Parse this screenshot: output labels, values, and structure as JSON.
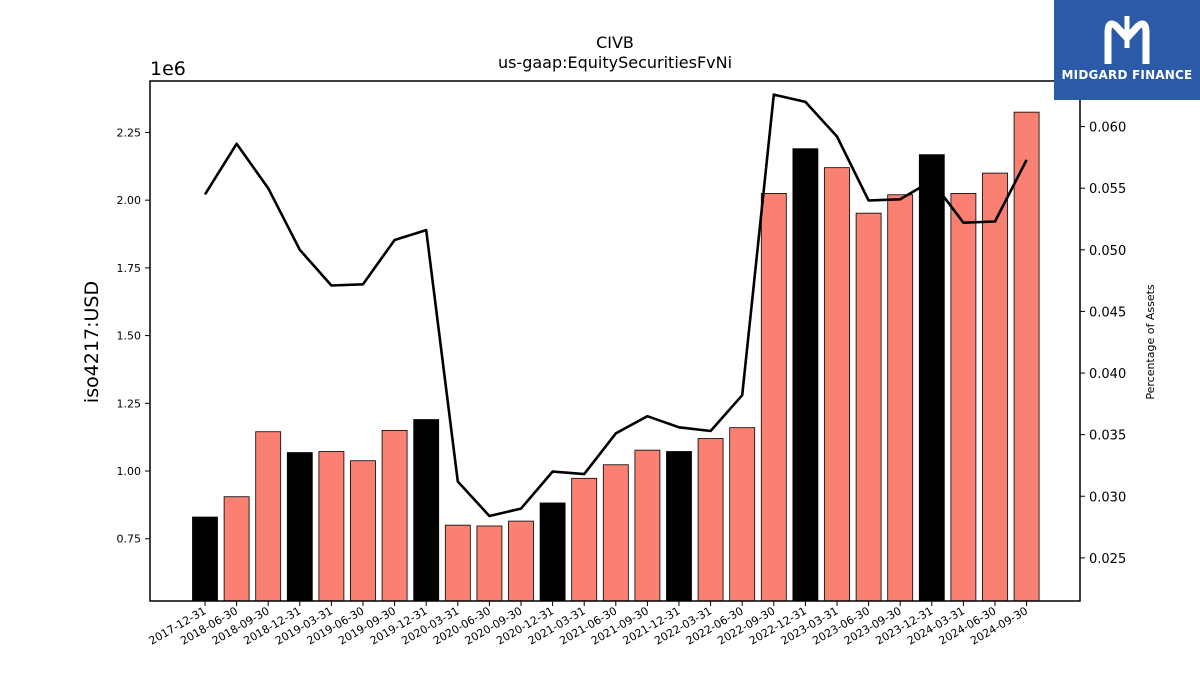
{
  "brand": {
    "name": "MIDGARD FINANCE"
  },
  "chart_data": {
    "type": "bar",
    "title": "CIVB",
    "subtitle": "us-gaap:EquitySecuritiesFvNi",
    "ylabel": "iso4217:USD",
    "y_multiplier": "1e6",
    "y2label": "Percentage of Assets",
    "ylim": [
      0.52,
      2.44
    ],
    "y2lim": [
      0.0215,
      0.0637
    ],
    "y_ticks": [
      "0.75",
      "1.00",
      "1.25",
      "1.50",
      "1.75",
      "2.00",
      "2.25"
    ],
    "y2_ticks": [
      "0.025",
      "0.030",
      "0.035",
      "0.040",
      "0.045",
      "0.050",
      "0.055",
      "0.060"
    ],
    "categories": [
      "2017-12-31",
      "2018-06-30",
      "2018-09-30",
      "2018-12-31",
      "2019-03-31",
      "2019-06-30",
      "2019-09-30",
      "2019-12-31",
      "2020-03-31",
      "2020-06-30",
      "2020-09-30",
      "2020-12-31",
      "2021-03-31",
      "2021-06-30",
      "2021-09-30",
      "2021-12-31",
      "2022-03-31",
      "2022-06-30",
      "2022-09-30",
      "2022-12-31",
      "2023-03-31",
      "2023-06-30",
      "2023-09-30",
      "2023-12-31",
      "2024-03-31",
      "2024-06-30",
      "2024-09-30"
    ],
    "series": [
      {
        "type": "bar",
        "values": [
          0.83,
          0.905,
          1.145,
          1.068,
          1.072,
          1.038,
          1.15,
          1.19,
          0.8,
          0.797,
          0.815,
          0.882,
          0.973,
          1.023,
          1.077,
          1.072,
          1.12,
          1.16,
          2.025,
          2.19,
          2.12,
          1.952,
          2.02,
          2.168,
          2.025,
          2.1,
          2.325
        ],
        "colors": [
          "#000000",
          "#fa8072",
          "#fa8072",
          "#000000",
          "#fa8072",
          "#fa8072",
          "#fa8072",
          "#000000",
          "#fa8072",
          "#fa8072",
          "#fa8072",
          "#000000",
          "#fa8072",
          "#fa8072",
          "#fa8072",
          "#000000",
          "#fa8072",
          "#fa8072",
          "#fa8072",
          "#000000",
          "#fa8072",
          "#fa8072",
          "#fa8072",
          "#000000",
          "#fa8072",
          "#fa8072",
          "#fa8072"
        ]
      },
      {
        "type": "line",
        "axis": "right",
        "color": "#000000",
        "values": [
          0.0545,
          0.0586,
          0.055,
          0.05,
          0.0471,
          0.0472,
          0.0508,
          0.0516,
          0.0312,
          0.0284,
          0.029,
          0.032,
          0.0318,
          0.0351,
          0.0365,
          0.0356,
          0.0353,
          0.0382,
          0.0626,
          0.062,
          0.0592,
          0.054,
          0.0541,
          0.0556,
          0.0522,
          0.0523,
          0.0573
        ]
      }
    ],
    "legend": "none",
    "grid": false
  }
}
